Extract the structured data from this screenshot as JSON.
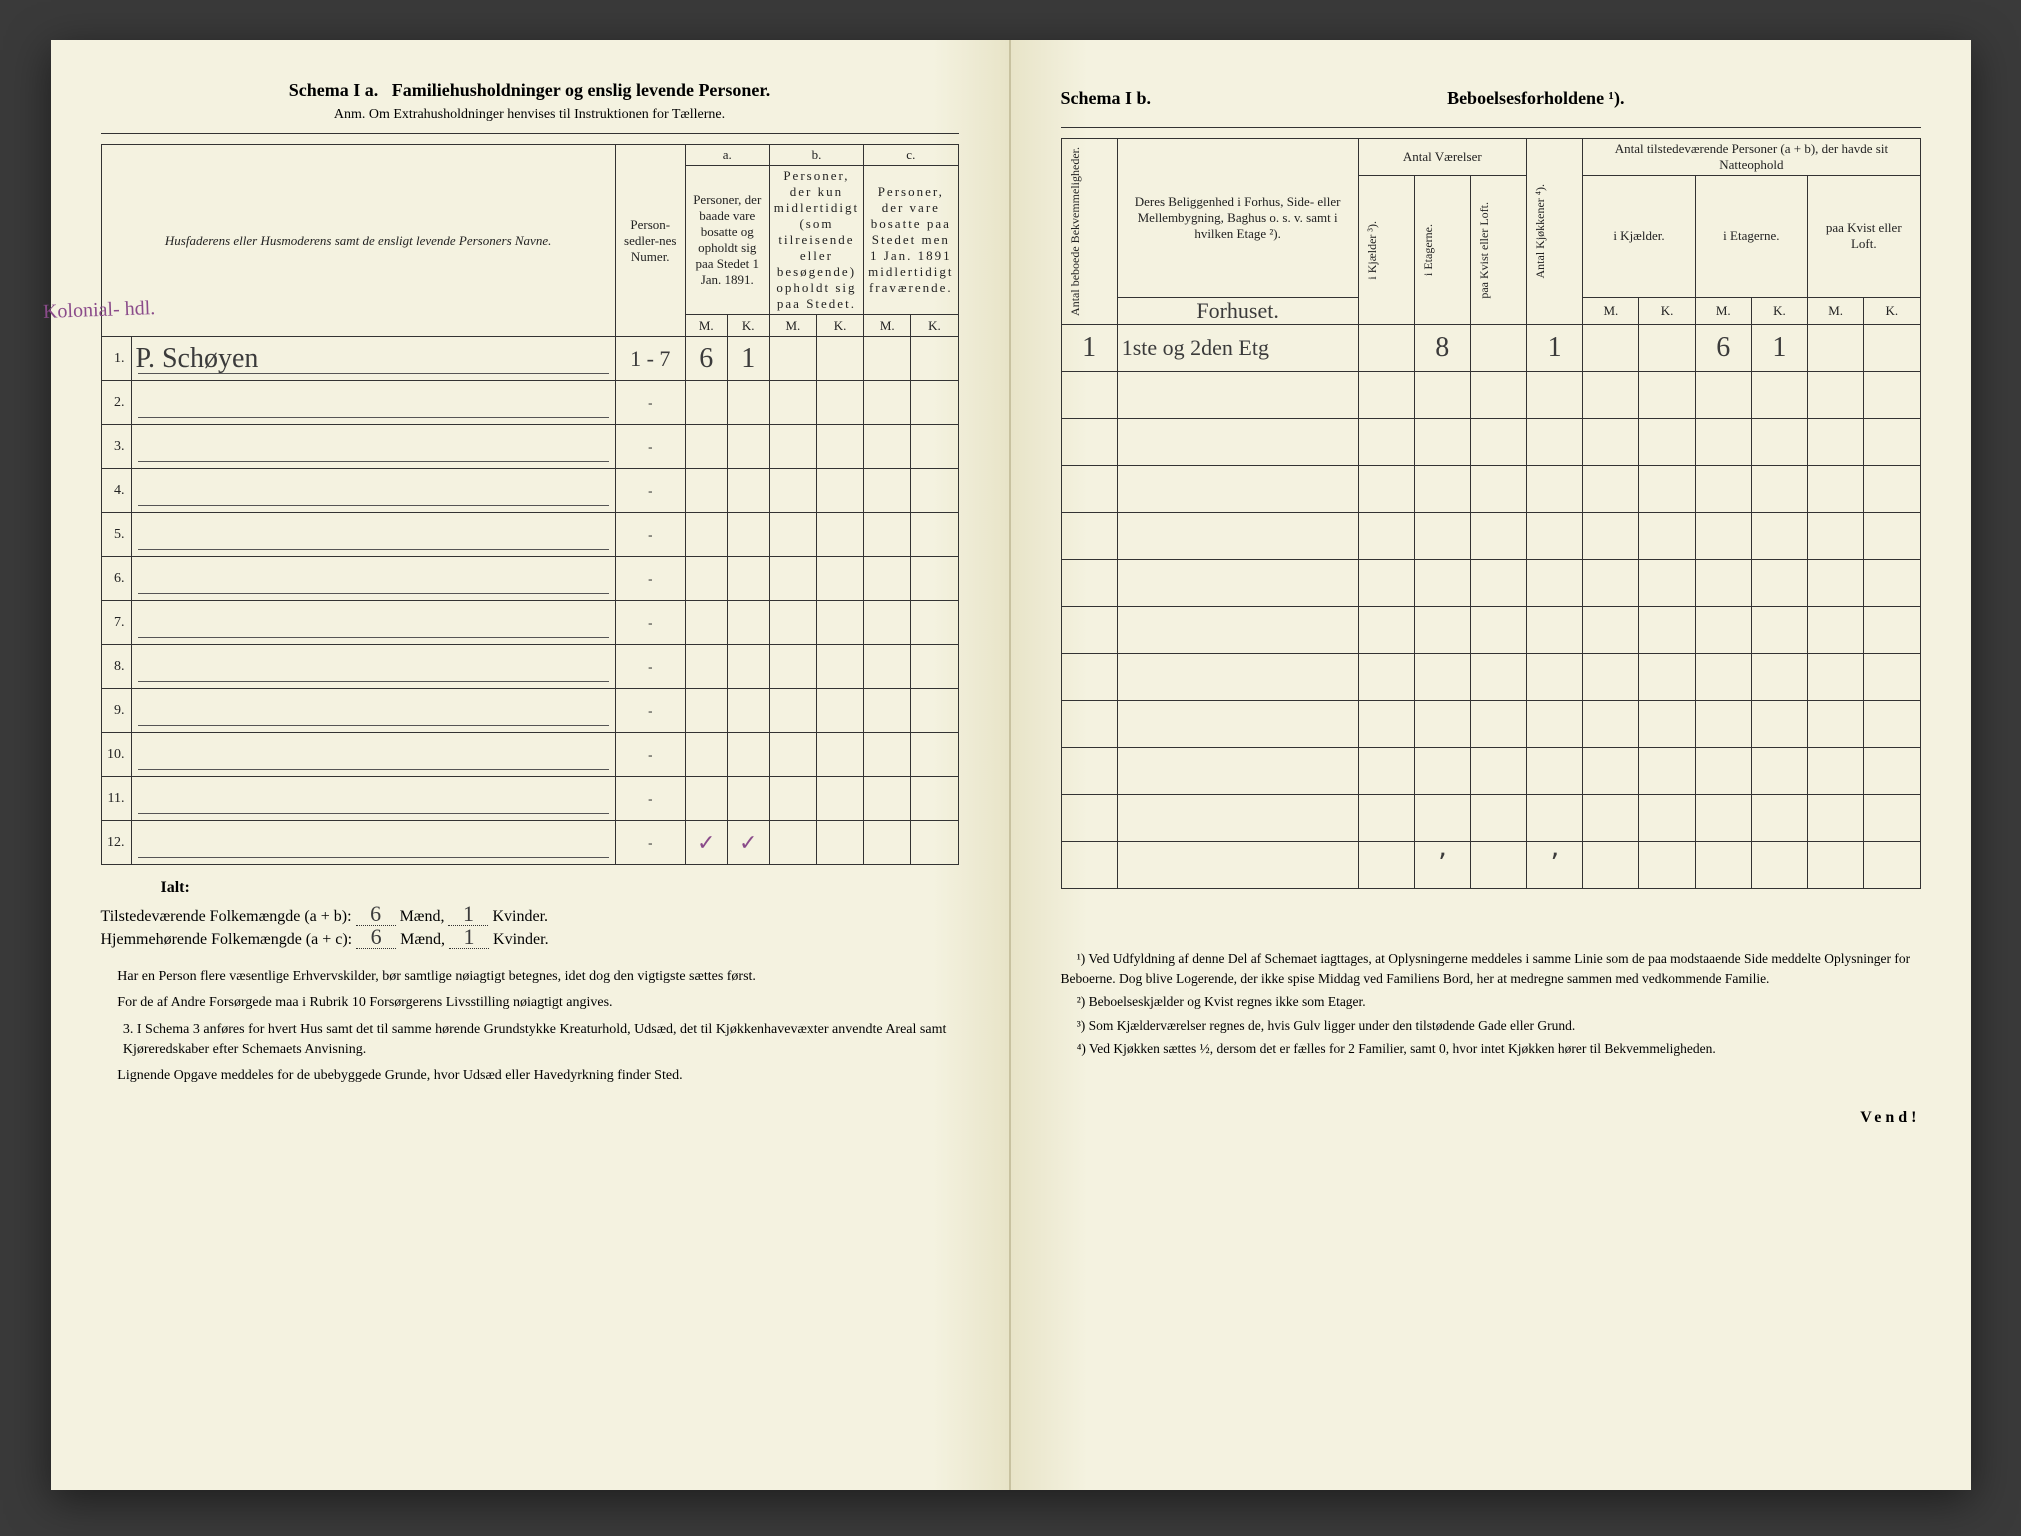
{
  "left": {
    "schema_label": "Schema I a.",
    "schema_title": "Familiehusholdninger og enslig levende Personer.",
    "anm": "Anm. Om Extrahusholdninger henvises til Instruktionen for Tællerne.",
    "col_groups": {
      "a": "a.",
      "b": "b.",
      "c": "c."
    },
    "headers": {
      "husfader": "Husfaderens eller Husmoderens samt de ensligt levende Personers Navne.",
      "personsedler": "Person-sedler-nes Numer.",
      "col_a": "Personer, der baade vare bosatte og opholdt sig paa Stedet 1 Jan. 1891.",
      "col_b": "Personer, der kun midlertidigt (som tilreisende eller besøgende) opholdt sig paa Stedet.",
      "col_c": "Personer, der vare bosatte paa Stedet men 1 Jan. 1891 midlertidigt fraværende.",
      "m": "M.",
      "k": "K."
    },
    "margin_note": "Kolonial-\nhdl.",
    "rows": [
      {
        "n": "1.",
        "name": "P. Schøyen",
        "sedler": "1 - 7",
        "a_m": "6",
        "a_k": "1",
        "b_m": "",
        "b_k": "",
        "c_m": "",
        "c_k": ""
      },
      {
        "n": "2.",
        "name": "",
        "sedler": "-",
        "a_m": "",
        "a_k": "",
        "b_m": "",
        "b_k": "",
        "c_m": "",
        "c_k": ""
      },
      {
        "n": "3.",
        "name": "",
        "sedler": "-",
        "a_m": "",
        "a_k": "",
        "b_m": "",
        "b_k": "",
        "c_m": "",
        "c_k": ""
      },
      {
        "n": "4.",
        "name": "",
        "sedler": "-",
        "a_m": "",
        "a_k": "",
        "b_m": "",
        "b_k": "",
        "c_m": "",
        "c_k": ""
      },
      {
        "n": "5.",
        "name": "",
        "sedler": "-",
        "a_m": "",
        "a_k": "",
        "b_m": "",
        "b_k": "",
        "c_m": "",
        "c_k": ""
      },
      {
        "n": "6.",
        "name": "",
        "sedler": "-",
        "a_m": "",
        "a_k": "",
        "b_m": "",
        "b_k": "",
        "c_m": "",
        "c_k": ""
      },
      {
        "n": "7.",
        "name": "",
        "sedler": "-",
        "a_m": "",
        "a_k": "",
        "b_m": "",
        "b_k": "",
        "c_m": "",
        "c_k": ""
      },
      {
        "n": "8.",
        "name": "",
        "sedler": "-",
        "a_m": "",
        "a_k": "",
        "b_m": "",
        "b_k": "",
        "c_m": "",
        "c_k": ""
      },
      {
        "n": "9.",
        "name": "",
        "sedler": "-",
        "a_m": "",
        "a_k": "",
        "b_m": "",
        "b_k": "",
        "c_m": "",
        "c_k": ""
      },
      {
        "n": "10.",
        "name": "",
        "sedler": "-",
        "a_m": "",
        "a_k": "",
        "b_m": "",
        "b_k": "",
        "c_m": "",
        "c_k": ""
      },
      {
        "n": "11.",
        "name": "",
        "sedler": "-",
        "a_m": "",
        "a_k": "",
        "b_m": "",
        "b_k": "",
        "c_m": "",
        "c_k": ""
      },
      {
        "n": "12.",
        "name": "",
        "sedler": "-",
        "a_m": "✓",
        "a_k": "✓",
        "b_m": "",
        "b_k": "",
        "c_m": "",
        "c_k": ""
      }
    ],
    "ialt": "Ialt:",
    "totals": {
      "line1_label": "Tilstedeværende Folkemængde (a + b):",
      "line2_label": "Hjemmehørende Folkemængde (a + c):",
      "maend": "Mænd,",
      "kvinder": "Kvinder.",
      "l1_m": "6",
      "l1_k": "1",
      "l2_m": "6",
      "l2_k": "1"
    },
    "body": {
      "p1": "Har en Person flere væsentlige Erhvervskilder, bør samtlige nøiagtigt betegnes, idet dog den vigtigste sættes først.",
      "p2": "For de af Andre Forsørgede maa i Rubrik 10 Forsørgerens Livsstilling nøiagtigt angives.",
      "p3_num": "3.",
      "p3": "I Schema 3 anføres for hvert Hus samt det til samme hørende Grundstykke Kreaturhold, Udsæd, det til Kjøkkenhavevæxter anvendte Areal samt Kjøreredskaber efter Schemaets Anvisning.",
      "p4": "Lignende Opgave meddeles for de ubebyggede Grunde, hvor Udsæd eller Havedyrkning finder Sted."
    }
  },
  "right": {
    "schema_label": "Schema I b.",
    "schema_title": "Beboelsesforholdene ¹).",
    "headers": {
      "antal_bekv": "Antal beboede Bekvemmeligheder.",
      "beliggenhed": "Deres Beliggenhed i Forhus, Side- eller Mellembygning, Baghus o. s. v. samt i hvilken Etage ²).",
      "hand_forhuset": "Forhuset.",
      "antal_vaer": "Antal Værelser",
      "i_kjaelder": "i Kjælder ³).",
      "i_etagerne_v": "i Etagerne.",
      "paa_kvist": "paa Kvist eller Loft.",
      "antal_kjok": "Antal Kjøkkener ⁴).",
      "antal_pers": "Antal tilstedeværende Personer (a + b), der havde sit Natteophold",
      "i_kjael": "i Kjælder.",
      "i_etag": "i Etagerne.",
      "paa_kvist2": "paa Kvist eller Loft.",
      "m": "M.",
      "k": "K."
    },
    "rows": [
      {
        "bekv": "1",
        "belig": "1ste og 2den Etg",
        "kj": "",
        "et": "8",
        "kv": "",
        "kjok": "1",
        "pk_m": "",
        "pk_k": "",
        "pe_m": "6",
        "pe_k": "1",
        "pl_m": "",
        "pl_k": ""
      },
      {
        "bekv": "",
        "belig": "",
        "kj": "",
        "et": "",
        "kv": "",
        "kjok": "",
        "pk_m": "",
        "pk_k": "",
        "pe_m": "",
        "pe_k": "",
        "pl_m": "",
        "pl_k": ""
      },
      {
        "bekv": "",
        "belig": "",
        "kj": "",
        "et": "",
        "kv": "",
        "kjok": "",
        "pk_m": "",
        "pk_k": "",
        "pe_m": "",
        "pe_k": "",
        "pl_m": "",
        "pl_k": ""
      },
      {
        "bekv": "",
        "belig": "",
        "kj": "",
        "et": "",
        "kv": "",
        "kjok": "",
        "pk_m": "",
        "pk_k": "",
        "pe_m": "",
        "pe_k": "",
        "pl_m": "",
        "pl_k": ""
      },
      {
        "bekv": "",
        "belig": "",
        "kj": "",
        "et": "",
        "kv": "",
        "kjok": "",
        "pk_m": "",
        "pk_k": "",
        "pe_m": "",
        "pe_k": "",
        "pl_m": "",
        "pl_k": ""
      },
      {
        "bekv": "",
        "belig": "",
        "kj": "",
        "et": "",
        "kv": "",
        "kjok": "",
        "pk_m": "",
        "pk_k": "",
        "pe_m": "",
        "pe_k": "",
        "pl_m": "",
        "pl_k": ""
      },
      {
        "bekv": "",
        "belig": "",
        "kj": "",
        "et": "",
        "kv": "",
        "kjok": "",
        "pk_m": "",
        "pk_k": "",
        "pe_m": "",
        "pe_k": "",
        "pl_m": "",
        "pl_k": ""
      },
      {
        "bekv": "",
        "belig": "",
        "kj": "",
        "et": "",
        "kv": "",
        "kjok": "",
        "pk_m": "",
        "pk_k": "",
        "pe_m": "",
        "pe_k": "",
        "pl_m": "",
        "pl_k": ""
      },
      {
        "bekv": "",
        "belig": "",
        "kj": "",
        "et": "",
        "kv": "",
        "kjok": "",
        "pk_m": "",
        "pk_k": "",
        "pe_m": "",
        "pe_k": "",
        "pl_m": "",
        "pl_k": ""
      },
      {
        "bekv": "",
        "belig": "",
        "kj": "",
        "et": "",
        "kv": "",
        "kjok": "",
        "pk_m": "",
        "pk_k": "",
        "pe_m": "",
        "pe_k": "",
        "pl_m": "",
        "pl_k": ""
      },
      {
        "bekv": "",
        "belig": "",
        "kj": "",
        "et": "",
        "kv": "",
        "kjok": "",
        "pk_m": "",
        "pk_k": "",
        "pe_m": "",
        "pe_k": "",
        "pl_m": "",
        "pl_k": ""
      },
      {
        "bekv": "",
        "belig": "",
        "kj": "",
        "et": "٬",
        "kv": "",
        "kjok": "٬",
        "pk_m": "",
        "pk_k": "",
        "pe_m": "",
        "pe_k": "",
        "pl_m": "",
        "pl_k": ""
      }
    ],
    "footnotes": {
      "f1": "¹) Ved Udfyldning af denne Del af Schemaet iagttages, at Oplysningerne meddeles i samme Linie som de paa modstaaende Side meddelte Oplysninger for Beboerne. Dog blive Logerende, der ikke spise Middag ved Familiens Bord, her at medregne sammen med vedkommende Familie.",
      "f2": "²) Beboelseskjælder og Kvist regnes ikke som Etager.",
      "f3": "³) Som Kjælderværelser regnes de, hvis Gulv ligger under den tilstødende Gade eller Grund.",
      "f4": "⁴) Ved Kjøkken sættes ½, dersom det er fælles for 2 Familier, samt 0, hvor intet Kjøkken hører til Bekvemmeligheden."
    },
    "vend": "Vend!"
  },
  "colors": {
    "paper": "#f4f2e0",
    "ink": "#222222",
    "hand": "#3b3b3b",
    "hand_purple": "#8a4b8a",
    "border": "#333333"
  }
}
